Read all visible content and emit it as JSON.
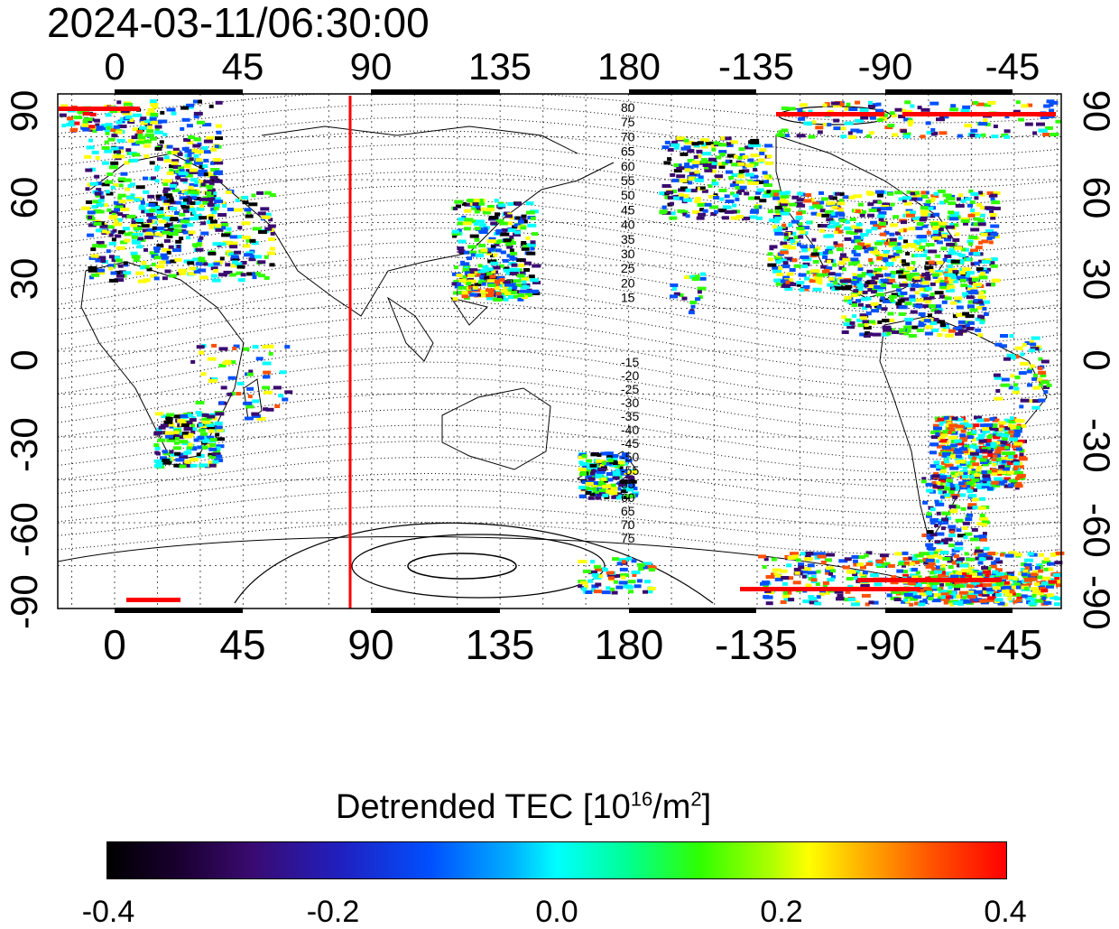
{
  "timestamp": "2024-03-11/06:30:00",
  "top_axis_ticks": [
    "0",
    "45",
    "90",
    "135",
    "180",
    "-135",
    "-90",
    "-45"
  ],
  "bottom_axis_ticks": [
    "0",
    "45",
    "90",
    "135",
    "180",
    "-135",
    "-90",
    "-45"
  ],
  "left_axis_ticks": [
    "90",
    "60",
    "30",
    "0",
    "-30",
    "-60",
    "-90"
  ],
  "right_axis_ticks": [
    "90",
    "60",
    "30",
    "0",
    "-30",
    "-60",
    "-90"
  ],
  "contour_labels_north": [
    "80",
    "75",
    "70",
    "65",
    "60",
    "55",
    "50",
    "45",
    "40",
    "35",
    "30",
    "25",
    "20",
    "15"
  ],
  "contour_labels_south": [
    "-15",
    "-20",
    "-25",
    "-30",
    "-35",
    "-40",
    "-45",
    "-50",
    "-55",
    "55",
    "60",
    "65",
    "70",
    "75"
  ],
  "colorbar": {
    "title": "Detrended TEC  [10",
    "title_exp": "16",
    "title_unit": "/m",
    "title_unit_exp": "2",
    "title_close": "]",
    "ticks": [
      "-0.4",
      "-0.2",
      "0.0",
      "0.2",
      "0.4"
    ],
    "min": -0.4,
    "max": 0.4,
    "colormap": [
      "#000000",
      "#3a0a70",
      "#0050ff",
      "#00ffff",
      "#30ff00",
      "#ffff00",
      "#ff5000",
      "#ff0000"
    ]
  },
  "terminator_line_color": "#ff0000",
  "terminator_longitude": 82
}
